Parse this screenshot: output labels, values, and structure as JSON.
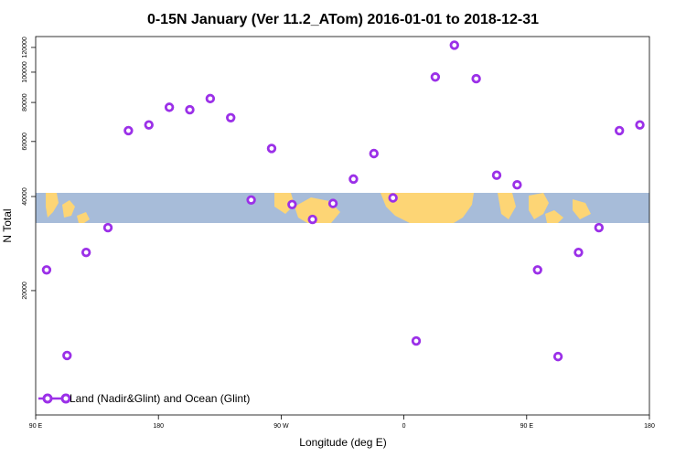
{
  "chart_data": {
    "type": "scatter",
    "title": "0-15N January (Ver 11.2_ATom)   2016-01-01 to 2018-12-31",
    "xlabel": "Longitude (deg E)",
    "ylabel": "N Total",
    "x_ticks": [
      {
        "value": 90,
        "label": "90 E"
      },
      {
        "value": 180,
        "label": "180"
      },
      {
        "value": 270,
        "label": "90 W"
      },
      {
        "value": 360,
        "label": "0"
      },
      {
        "value": 450,
        "label": "90 E"
      },
      {
        "value": 540,
        "label": "180"
      }
    ],
    "y_ticks": [
      20000,
      40000,
      60000,
      80000,
      100000,
      120000
    ],
    "xlim": [
      90,
      540
    ],
    "ylim": [
      8000,
      130000
    ],
    "y_scale": "log",
    "series": [
      {
        "name": "Land (Nadir&Glint) and Ocean (Glint)",
        "color": "#9b30e8",
        "points": [
          {
            "x": 98,
            "y": 23300
          },
          {
            "x": 113,
            "y": 12400
          },
          {
            "x": 127,
            "y": 26500
          },
          {
            "x": 143,
            "y": 31800
          },
          {
            "x": 158,
            "y": 65000
          },
          {
            "x": 173,
            "y": 67800
          },
          {
            "x": 188,
            "y": 77200
          },
          {
            "x": 203,
            "y": 75800
          },
          {
            "x": 218,
            "y": 82300
          },
          {
            "x": 233,
            "y": 71500
          },
          {
            "x": 248,
            "y": 39000
          },
          {
            "x": 263,
            "y": 57000
          },
          {
            "x": 278,
            "y": 37700
          },
          {
            "x": 293,
            "y": 33800
          },
          {
            "x": 308,
            "y": 38000
          },
          {
            "x": 323,
            "y": 45500
          },
          {
            "x": 338,
            "y": 54900
          },
          {
            "x": 352,
            "y": 39600
          },
          {
            "x": 369,
            "y": 13800
          },
          {
            "x": 383,
            "y": 96500
          },
          {
            "x": 397,
            "y": 122000
          },
          {
            "x": 413,
            "y": 95300
          },
          {
            "x": 428,
            "y": 46800
          },
          {
            "x": 443,
            "y": 43600
          },
          {
            "x": 458,
            "y": 23300
          },
          {
            "x": 473,
            "y": 12300
          },
          {
            "x": 488,
            "y": 26500
          },
          {
            "x": 503,
            "y": 31800
          },
          {
            "x": 518,
            "y": 65000
          },
          {
            "x": 533,
            "y": 67800
          }
        ]
      }
    ],
    "legend": {
      "placement": "bottom-left"
    },
    "grid": false,
    "map_strip": {
      "ocean_color": "#a7bcd9",
      "land_color": "#fdd575"
    }
  }
}
